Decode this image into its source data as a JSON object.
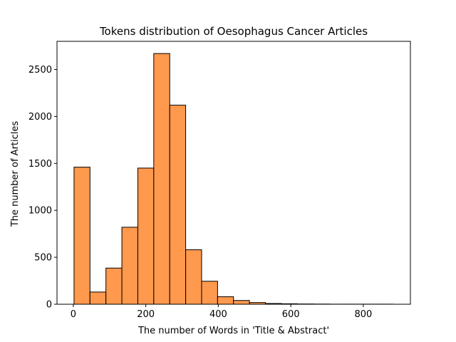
{
  "chart_data": {
    "type": "bar",
    "title": "Tokens distribution of Oesophagus Cancer Articles",
    "xlabel": "The number of Words in  'Title & Abstract'",
    "ylabel": "The number of Articles",
    "xlim": [
      -45,
      930
    ],
    "ylim": [
      0,
      2800
    ],
    "xticks": [
      0,
      200,
      400,
      600,
      800
    ],
    "yticks": [
      0,
      500,
      1000,
      1500,
      2000,
      2500
    ],
    "bin_edges": [
      2,
      46,
      90,
      134,
      178,
      222,
      266,
      310,
      354,
      398,
      442,
      486,
      530,
      574,
      618,
      662,
      706,
      750,
      794,
      838,
      882
    ],
    "values": [
      1460,
      130,
      385,
      820,
      1450,
      2670,
      2120,
      580,
      245,
      80,
      40,
      18,
      8,
      5,
      3,
      2,
      1,
      1,
      1,
      1
    ],
    "bar_color": "#ff994d",
    "edge_color": "#000000",
    "grid": false
  }
}
